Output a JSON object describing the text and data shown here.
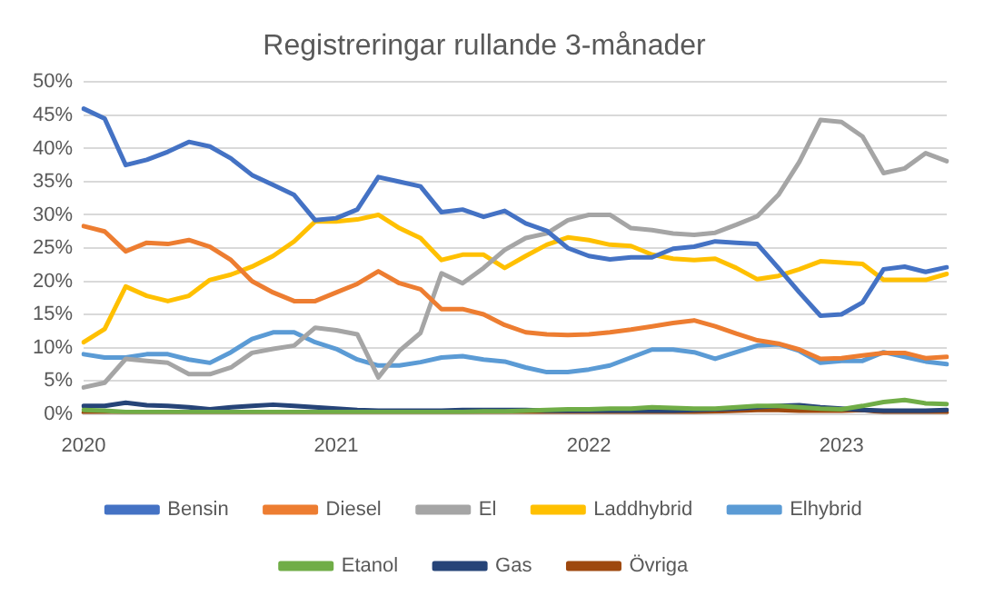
{
  "chart_data": {
    "type": "line",
    "title": "Registreringar rullande 3-månader",
    "categories": [
      "2020",
      null,
      null,
      null,
      null,
      null,
      null,
      null,
      null,
      null,
      null,
      null,
      "2021",
      null,
      null,
      null,
      null,
      null,
      null,
      null,
      null,
      null,
      null,
      null,
      "2022",
      null,
      null,
      null,
      null,
      null,
      null,
      null,
      null,
      null,
      null,
      null,
      "2023",
      null,
      null,
      null,
      null,
      null
    ],
    "ylim": [
      0,
      50
    ],
    "yticks": [
      {
        "value": 0,
        "label": "0%"
      },
      {
        "value": 5,
        "label": "5%"
      },
      {
        "value": 10,
        "label": "10%"
      },
      {
        "value": 15,
        "label": "15%"
      },
      {
        "value": 20,
        "label": "20%"
      },
      {
        "value": 25,
        "label": "25%"
      },
      {
        "value": 30,
        "label": "30%"
      },
      {
        "value": 35,
        "label": "35%"
      },
      {
        "value": 40,
        "label": "40%"
      },
      {
        "value": 45,
        "label": "45%"
      },
      {
        "value": 50,
        "label": "50%"
      }
    ],
    "grid": "y",
    "legend": "bottom",
    "marker": "none",
    "line_style": "solid",
    "series": [
      {
        "name": "Bensin",
        "color": "#4472c4",
        "values": [
          46,
          44.5,
          37.5,
          38.3,
          39.5,
          41,
          40.3,
          38.5,
          36,
          34.5,
          33,
          29.2,
          29.5,
          30.8,
          35.7,
          35,
          34.3,
          30.4,
          30.8,
          29.7,
          30.6,
          28.7,
          27.6,
          25,
          23.8,
          23.3,
          23.6,
          23.6,
          24.9,
          25.2,
          26,
          25.8,
          25.6,
          22,
          18.3,
          14.8,
          15,
          16.8,
          21.8,
          22.2,
          21.4,
          22.1
        ]
      },
      {
        "name": "Diesel",
        "color": "#ed7d31",
        "values": [
          28.3,
          27.5,
          24.5,
          25.8,
          25.6,
          26.2,
          25.2,
          23.2,
          20,
          18.3,
          17,
          17,
          18.3,
          19.6,
          21.5,
          19.7,
          18.8,
          15.8,
          15.8,
          15,
          13.4,
          12.3,
          12,
          11.9,
          12,
          12.3,
          12.7,
          13.2,
          13.7,
          14.1,
          13.2,
          12.1,
          11.1,
          10.6,
          9.7,
          8.3,
          8.4,
          8.8,
          9.2,
          9.2,
          8.4,
          8.6
        ]
      },
      {
        "name": "El",
        "color": "#a5a5a5",
        "values": [
          4,
          4.7,
          8.3,
          8,
          7.7,
          6,
          6,
          7,
          9.2,
          9.8,
          10.3,
          13,
          12.6,
          12,
          5.5,
          9.5,
          12.2,
          21.2,
          19.7,
          22,
          24.7,
          26.5,
          27.2,
          29.2,
          30,
          30,
          28,
          27.7,
          27.2,
          27,
          27.3,
          28.5,
          29.8,
          33,
          38,
          44.3,
          44,
          41.8,
          36.3,
          37,
          39.3,
          38.1
        ]
      },
      {
        "name": "Laddhybrid",
        "color": "#ffc000",
        "values": [
          10.8,
          12.8,
          19.2,
          17.8,
          17,
          17.8,
          20.2,
          21,
          22.2,
          23.8,
          26,
          29,
          29,
          29.3,
          30,
          28,
          26.5,
          23.2,
          24,
          24,
          22,
          23.8,
          25.5,
          26.6,
          26.2,
          25.5,
          25.3,
          24,
          23.4,
          23.2,
          23.4,
          22,
          20.3,
          20.8,
          21.8,
          23,
          22.8,
          22.6,
          20.2,
          20.2,
          20.2,
          21.1
        ]
      },
      {
        "name": "Elhybrid",
        "color": "#5b9bd5",
        "values": [
          9,
          8.5,
          8.5,
          9,
          9,
          8.2,
          7.7,
          9.3,
          11.3,
          12.3,
          12.3,
          10.8,
          9.8,
          8.2,
          7.3,
          7.3,
          7.8,
          8.5,
          8.7,
          8.2,
          7.9,
          7,
          6.3,
          6.3,
          6.7,
          7.3,
          8.5,
          9.7,
          9.7,
          9.3,
          8.3,
          9.3,
          10.3,
          10.5,
          9.5,
          7.7,
          8,
          8,
          9.3,
          8.6,
          7.9,
          7.5
        ]
      },
      {
        "name": "Etanol",
        "color": "#70ad47",
        "values": [
          0.6,
          0.5,
          0.3,
          0.3,
          0.3,
          0.3,
          0.3,
          0.3,
          0.3,
          0.3,
          0.3,
          0.3,
          0.3,
          0.3,
          0.3,
          0.3,
          0.3,
          0.3,
          0.3,
          0.4,
          0.4,
          0.5,
          0.6,
          0.7,
          0.7,
          0.8,
          0.8,
          1,
          0.9,
          0.8,
          0.8,
          1,
          1.2,
          1.2,
          1,
          0.8,
          0.7,
          1.2,
          1.8,
          2.1,
          1.6,
          1.5
        ]
      },
      {
        "name": "Gas",
        "color": "#264478",
        "values": [
          1.2,
          1.2,
          1.7,
          1.3,
          1.2,
          1,
          0.7,
          1,
          1.2,
          1.4,
          1.2,
          1,
          0.8,
          0.6,
          0.5,
          0.5,
          0.5,
          0.5,
          0.6,
          0.6,
          0.6,
          0.6,
          0.5,
          0.5,
          0.5,
          0.5,
          0.5,
          0.5,
          0.5,
          0.6,
          0.7,
          0.8,
          1,
          1.2,
          1.3,
          1,
          0.8,
          0.6,
          0.5,
          0.5,
          0.5,
          0.6
        ]
      },
      {
        "name": "Övriga",
        "color": "#9e480e",
        "values": [
          0.2,
          0.2,
          0.2,
          0.2,
          0.2,
          0.2,
          0.2,
          0.2,
          0.2,
          0.2,
          0.2,
          0.2,
          0.2,
          0.2,
          0.2,
          0.2,
          0.2,
          0.2,
          0.2,
          0.2,
          0.2,
          0.2,
          0.2,
          0.2,
          0.2,
          0.2,
          0.2,
          0.2,
          0.2,
          0.3,
          0.4,
          0.5,
          0.6,
          0.6,
          0.5,
          0.5,
          0.5,
          0.6,
          0.3,
          0.2,
          0.2,
          0.2
        ]
      }
    ]
  }
}
